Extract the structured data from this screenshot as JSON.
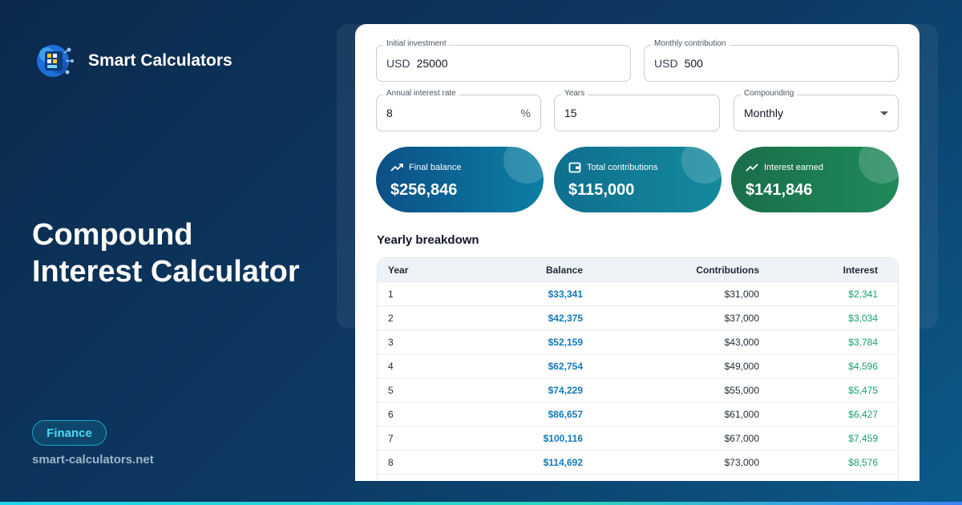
{
  "brand": {
    "name": "Smart Calculators"
  },
  "hero": {
    "title_line1": "Compound",
    "title_line2": "Interest Calculator"
  },
  "category_badge": "Finance",
  "site_url": "smart-calculators.net",
  "colors": {
    "background": "#0d3a64",
    "balance_text": "#1479b8",
    "interest_text": "#16a36a",
    "badge_text": "#4fd6f2"
  },
  "form": {
    "initial_investment": {
      "label": "Initial investment",
      "prefix": "USD",
      "value": "25000"
    },
    "monthly_contribution": {
      "label": "Monthly contribution",
      "prefix": "USD",
      "value": "500"
    },
    "annual_rate": {
      "label": "Annual interest rate",
      "value": "8",
      "suffix": "%"
    },
    "years": {
      "label": "Years",
      "value": "15"
    },
    "compounding": {
      "label": "Compounding",
      "value": "Monthly"
    }
  },
  "stats": {
    "final_balance": {
      "label": "Final balance",
      "value": "$256,846",
      "icon": "trending-up-icon"
    },
    "total_contributions": {
      "label": "Total contributions",
      "value": "$115,000",
      "icon": "wallet-icon"
    },
    "interest_earned": {
      "label": "Interest earned",
      "value": "$141,846",
      "icon": "trending-up-icon"
    }
  },
  "breakdown": {
    "title": "Yearly breakdown",
    "columns": [
      "Year",
      "Balance",
      "Contributions",
      "Interest"
    ],
    "rows": [
      [
        "1",
        "$33,341",
        "$31,000",
        "$2,341"
      ],
      [
        "2",
        "$42,375",
        "$37,000",
        "$3,034"
      ],
      [
        "3",
        "$52,159",
        "$43,000",
        "$3,784"
      ],
      [
        "4",
        "$62,754",
        "$49,000",
        "$4,596"
      ],
      [
        "5",
        "$74,229",
        "$55,000",
        "$5,475"
      ],
      [
        "6",
        "$86,657",
        "$61,000",
        "$6,427"
      ],
      [
        "7",
        "$100,116",
        "$67,000",
        "$7,459"
      ],
      [
        "8",
        "$114,692",
        "$73,000",
        "$8,576"
      ]
    ]
  }
}
